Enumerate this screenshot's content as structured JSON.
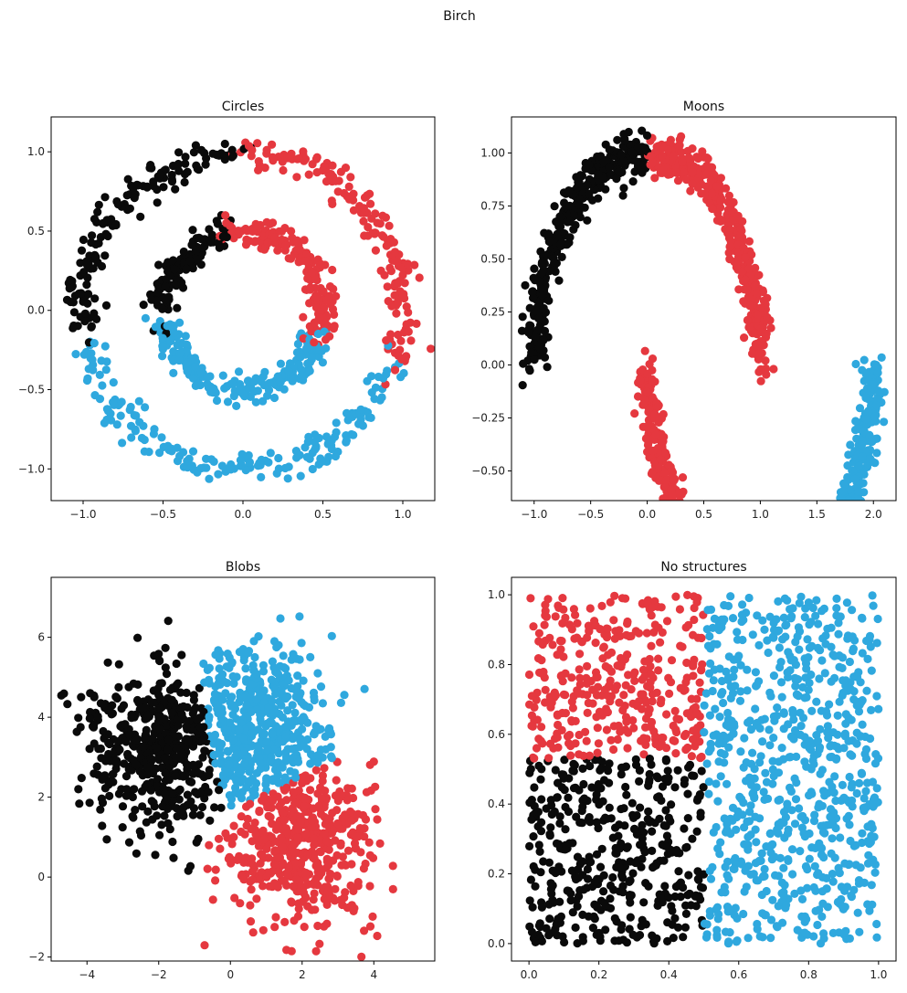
{
  "figure_title": "Birch",
  "colors": {
    "black": "#0a0a0a",
    "red": "#e5383f",
    "blue": "#2fa8de"
  },
  "chart_data": [
    {
      "type": "scatter",
      "title": "Circles",
      "xlim": [
        -1.2,
        1.2
      ],
      "ylim": [
        -1.2,
        1.22
      ],
      "x_ticks": [
        -1.0,
        -0.5,
        0.0,
        0.5,
        1.0
      ],
      "x_tick_labels": [
        "−1.0",
        "−0.5",
        "0.0",
        "0.5",
        "1.0"
      ],
      "y_ticks": [
        -1.0,
        -0.5,
        0.0,
        0.5,
        1.0
      ],
      "y_tick_labels": [
        "−1.0",
        "−0.5",
        "0.0",
        "0.5",
        "1.0"
      ],
      "grid": false,
      "clusters": [
        {
          "color": "black",
          "description": "outer ring arc from 90° to 190° (radius ≈1.0) and inner ring arc from 100° to 190° (radius ≈0.5)"
        },
        {
          "color": "red",
          "description": "outer ring arc from -20° to 90° and inner ring arc from -20° to 100°"
        },
        {
          "color": "blue",
          "description": "lower halves of both rings, from 190° to 340°"
        }
      ]
    },
    {
      "type": "scatter",
      "title": "Moons",
      "xlim": [
        -1.2,
        2.2
      ],
      "ylim": [
        -0.64,
        1.17
      ],
      "x_ticks": [
        -1.0,
        -0.5,
        0.0,
        0.5,
        1.0,
        1.5,
        2.0
      ],
      "x_tick_labels": [
        "−1.0",
        "−0.5",
        "0.0",
        "0.5",
        "1.0",
        "1.5",
        "2.0"
      ],
      "y_ticks": [
        -0.5,
        -0.25,
        0.0,
        0.25,
        0.5,
        0.75,
        1.0
      ],
      "y_tick_labels": [
        "−0.50",
        "−0.25",
        "0.00",
        "0.25",
        "0.50",
        "0.75",
        "1.00"
      ],
      "grid": false,
      "clusters": [
        {
          "color": "black",
          "description": "left half of upper moon, x from -1.0 to 0.0"
        },
        {
          "color": "red",
          "description": "right half of upper moon x 0.0 to 1.0, and left part of lower moon x 0.0 to 0.4"
        },
        {
          "color": "blue",
          "description": "remaining lower moon, x from 0.4 to 2.0"
        }
      ]
    },
    {
      "type": "scatter",
      "title": "Blobs",
      "xlim": [
        -5.0,
        5.7
      ],
      "ylim": [
        -2.1,
        7.5
      ],
      "x_ticks": [
        -4,
        -2,
        0,
        2,
        4
      ],
      "x_tick_labels": [
        "−4",
        "−2",
        "0",
        "2",
        "4"
      ],
      "y_ticks": [
        -2,
        0,
        2,
        4,
        6
      ],
      "y_tick_labels": [
        "−2",
        "0",
        "2",
        "4",
        "6"
      ],
      "grid": false,
      "clusters": [
        {
          "color": "black",
          "center": [
            -2.0,
            3.2
          ],
          "description": "blob centered near (-2, 3.2)"
        },
        {
          "color": "blue",
          "center": [
            0.8,
            3.8
          ],
          "description": "blob centered near (0.8, 3.8)"
        },
        {
          "color": "red",
          "center": [
            2.1,
            0.8
          ],
          "description": "blob centered near (2.1, 0.8)"
        }
      ]
    },
    {
      "type": "scatter",
      "title": "No structures",
      "xlim": [
        -0.05,
        1.05
      ],
      "ylim": [
        -0.05,
        1.05
      ],
      "x_ticks": [
        0.0,
        0.2,
        0.4,
        0.6,
        0.8,
        1.0
      ],
      "x_tick_labels": [
        "0.0",
        "0.2",
        "0.4",
        "0.6",
        "0.8",
        "1.0"
      ],
      "y_ticks": [
        0.0,
        0.2,
        0.4,
        0.6,
        0.8,
        1.0
      ],
      "y_tick_labels": [
        "0.0",
        "0.2",
        "0.4",
        "0.6",
        "0.8",
        "1.0"
      ],
      "grid": false,
      "clusters": [
        {
          "color": "red",
          "region": {
            "x": [
              0.0,
              0.5
            ],
            "y": [
              0.53,
              1.0
            ]
          }
        },
        {
          "color": "black",
          "region": {
            "x": [
              0.0,
              0.5
            ],
            "y": [
              0.0,
              0.53
            ]
          }
        },
        {
          "color": "blue",
          "region": {
            "x": [
              0.5,
              1.0
            ],
            "y": [
              0.0,
              1.0
            ]
          }
        }
      ]
    }
  ]
}
